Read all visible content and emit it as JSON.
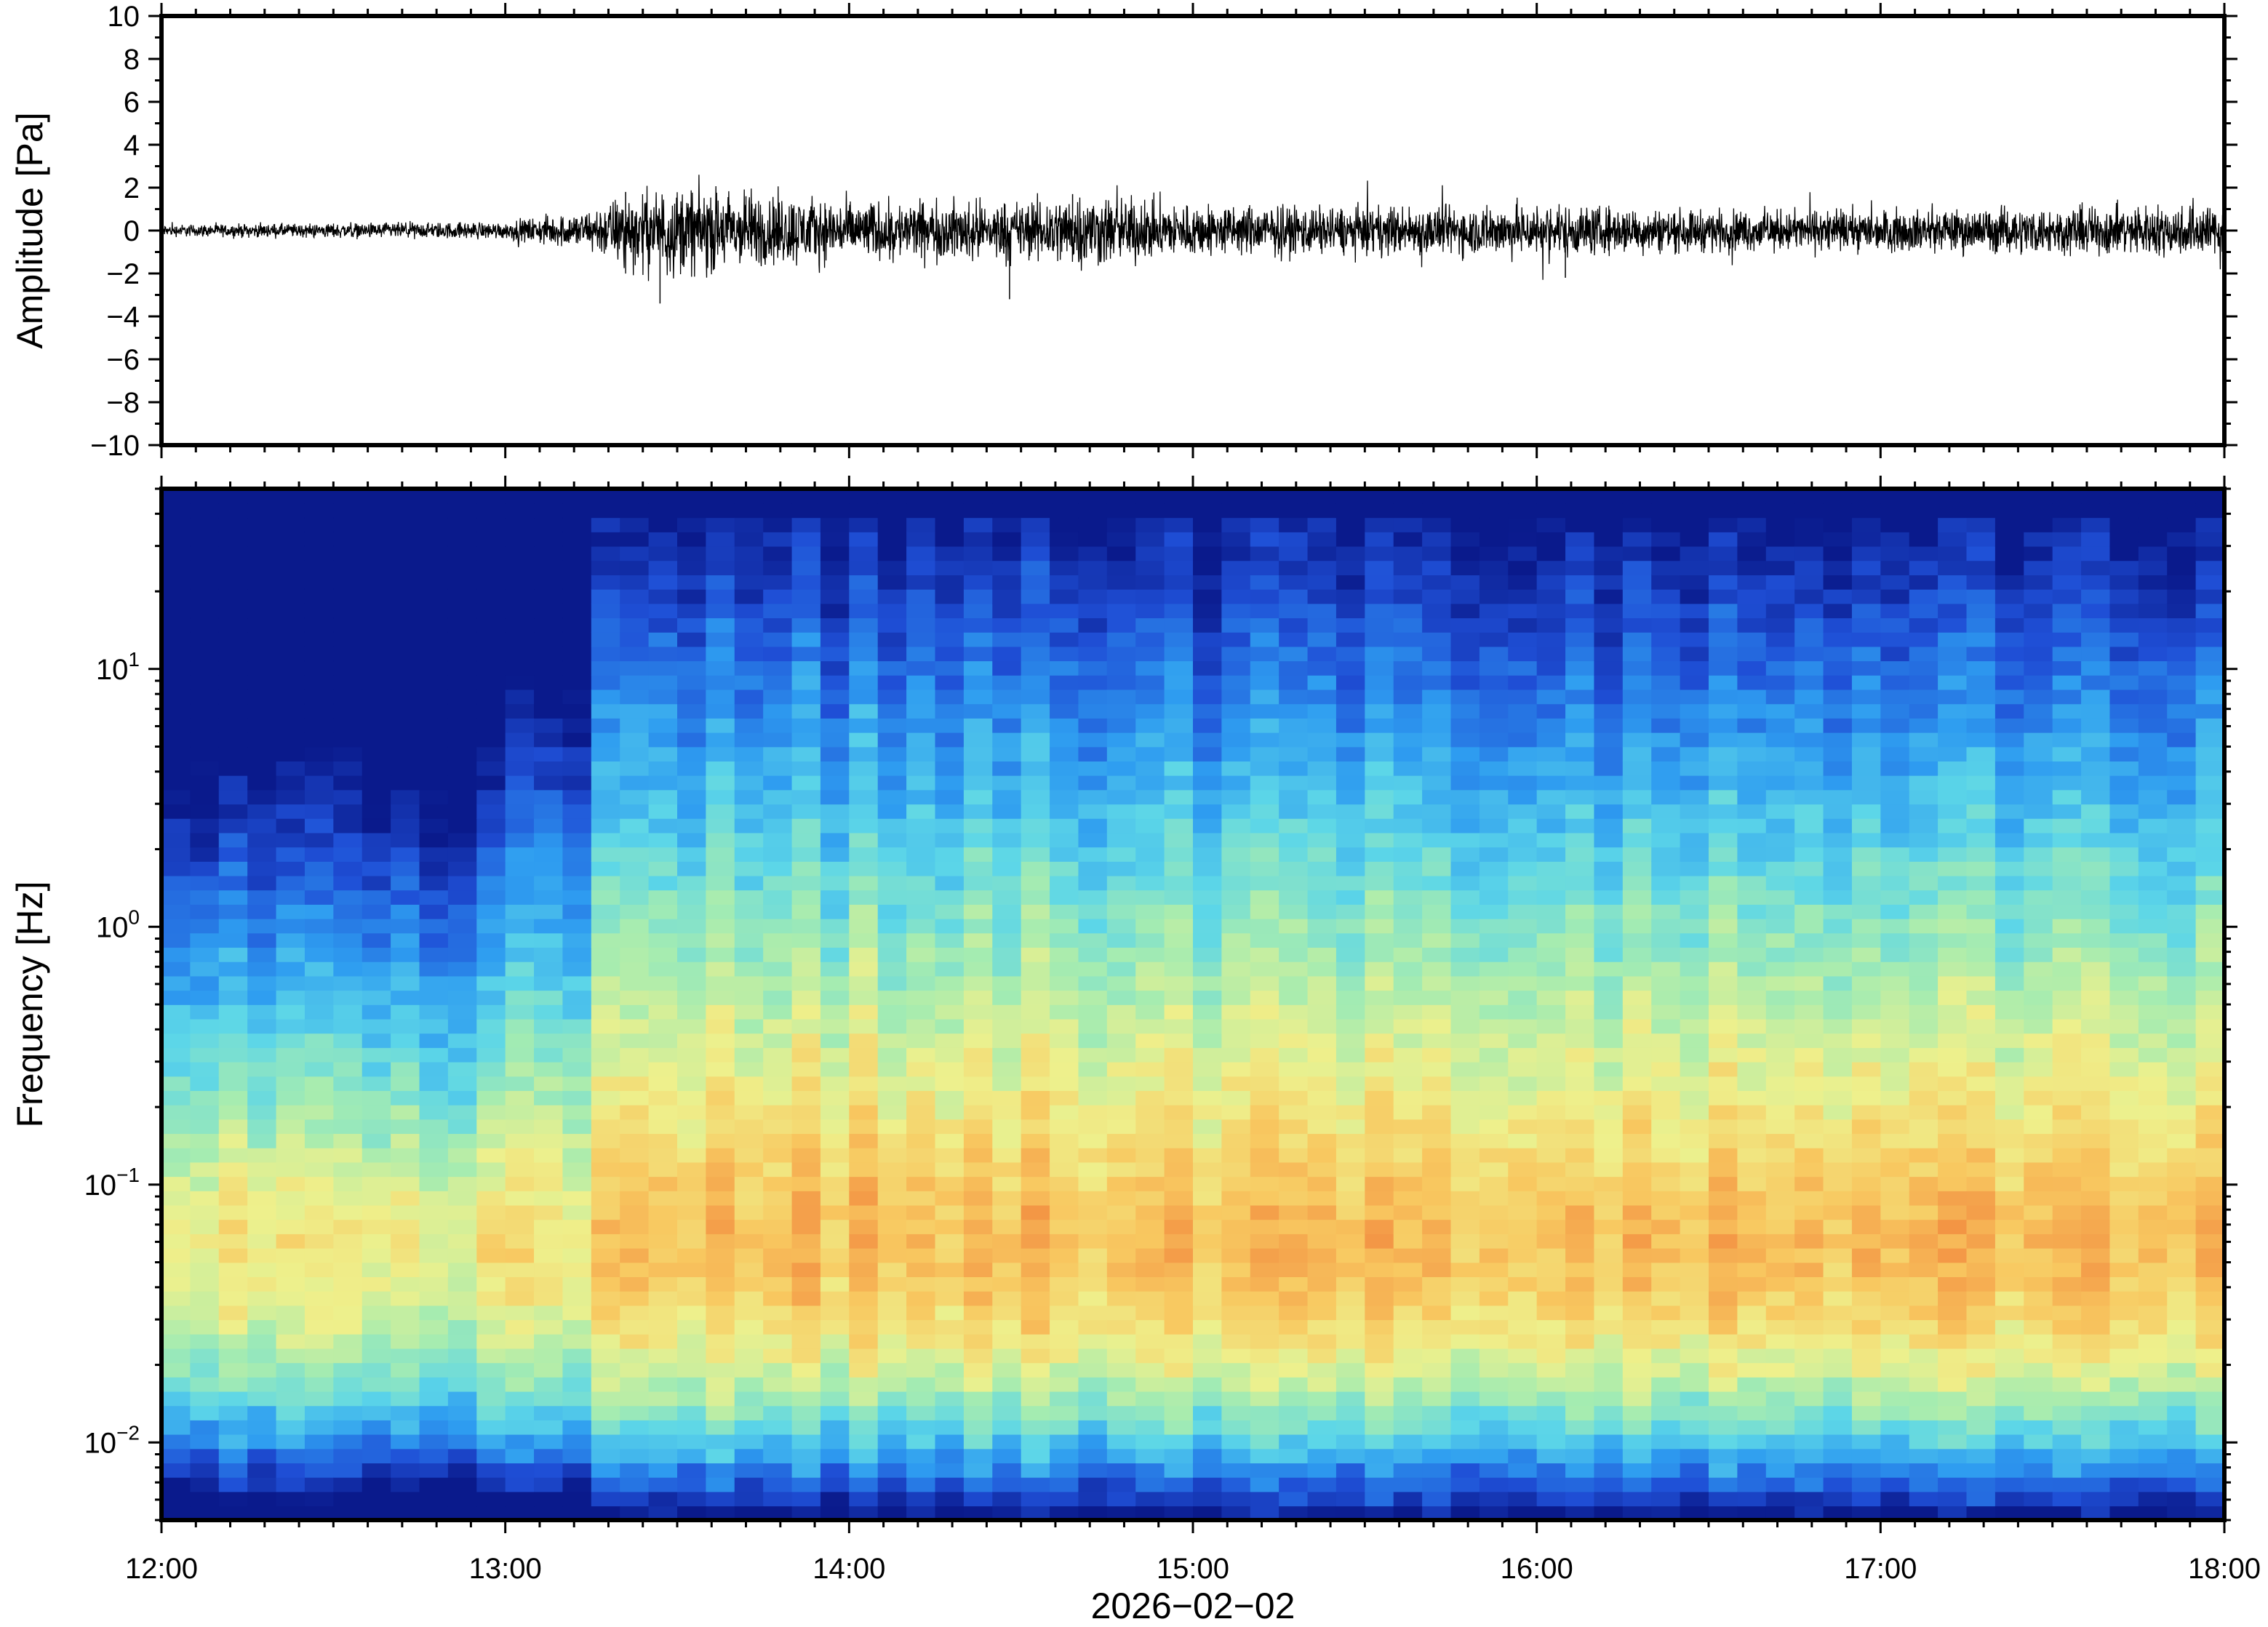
{
  "chart_data": [
    {
      "type": "line",
      "title": "",
      "ylabel": "Amplitude [Pa]",
      "xlabel": "",
      "ylim": [
        -10,
        10
      ],
      "yticks": [
        "10",
        "8",
        "6",
        "4",
        "2",
        "0",
        "−2",
        "−4",
        "−6",
        "−8",
        "−10"
      ],
      "ytick_values": [
        10,
        8,
        6,
        4,
        2,
        0,
        -2,
        -4,
        -6,
        -8,
        -10
      ],
      "xlim": [
        "12:00",
        "18:00"
      ],
      "series": [
        {
          "color": "#000000",
          "envelope_x": [
            "12:00",
            "12:30",
            "13:00",
            "13:15",
            "13:20",
            "13:30",
            "13:45",
            "14:00",
            "14:30",
            "14:40",
            "15:00",
            "15:30",
            "16:00",
            "16:30",
            "17:00",
            "17:30",
            "18:00"
          ],
          "envelope_amplitude_pa": [
            0.2,
            0.25,
            0.3,
            0.7,
            1.2,
            1.5,
            1.3,
            1.0,
            1.0,
            1.3,
            0.9,
            0.8,
            0.9,
            0.7,
            0.7,
            0.8,
            0.9
          ],
          "peaks": [
            {
              "x": "13:21",
              "y": 1.8
            },
            {
              "x": "13:27",
              "y": -3.4
            },
            {
              "x": "13:42",
              "y": 1.6
            },
            {
              "x": "14:28",
              "y": -3.2
            },
            {
              "x": "14:39",
              "y": 1.7
            },
            {
              "x": "16:05",
              "y": -2.2
            }
          ]
        }
      ]
    },
    {
      "type": "heatmap",
      "title": "",
      "ylabel": "Frequency [Hz]",
      "xlabel": "2026−02−02",
      "yscale": "log",
      "ylim": [
        0.005,
        50
      ],
      "yticks": [
        {
          "base": "10",
          "exp": "1",
          "value": 10
        },
        {
          "base": "10",
          "exp": "0",
          "value": 1
        },
        {
          "base": "10",
          "exp": "−1",
          "value": 0.1
        },
        {
          "base": "10",
          "exp": "−2",
          "value": 0.01
        }
      ],
      "xticks": [
        "12:00",
        "13:00",
        "14:00",
        "15:00",
        "16:00",
        "17:00",
        "18:00"
      ],
      "xlim": [
        "12:00",
        "18:00"
      ],
      "colormap": "rainbow",
      "colors": [
        "#0a1a8c",
        "#1f4fd6",
        "#2e9cf0",
        "#5cd6e8",
        "#a6ecb0",
        "#eef08c",
        "#f8c860",
        "#f39444",
        "#e5574a"
      ],
      "quiet_until": "13:00",
      "onset": "13:15",
      "low_band_value": "blue-green below 0.02 Hz",
      "peak_band": [
        0.03,
        0.3
      ]
    }
  ]
}
